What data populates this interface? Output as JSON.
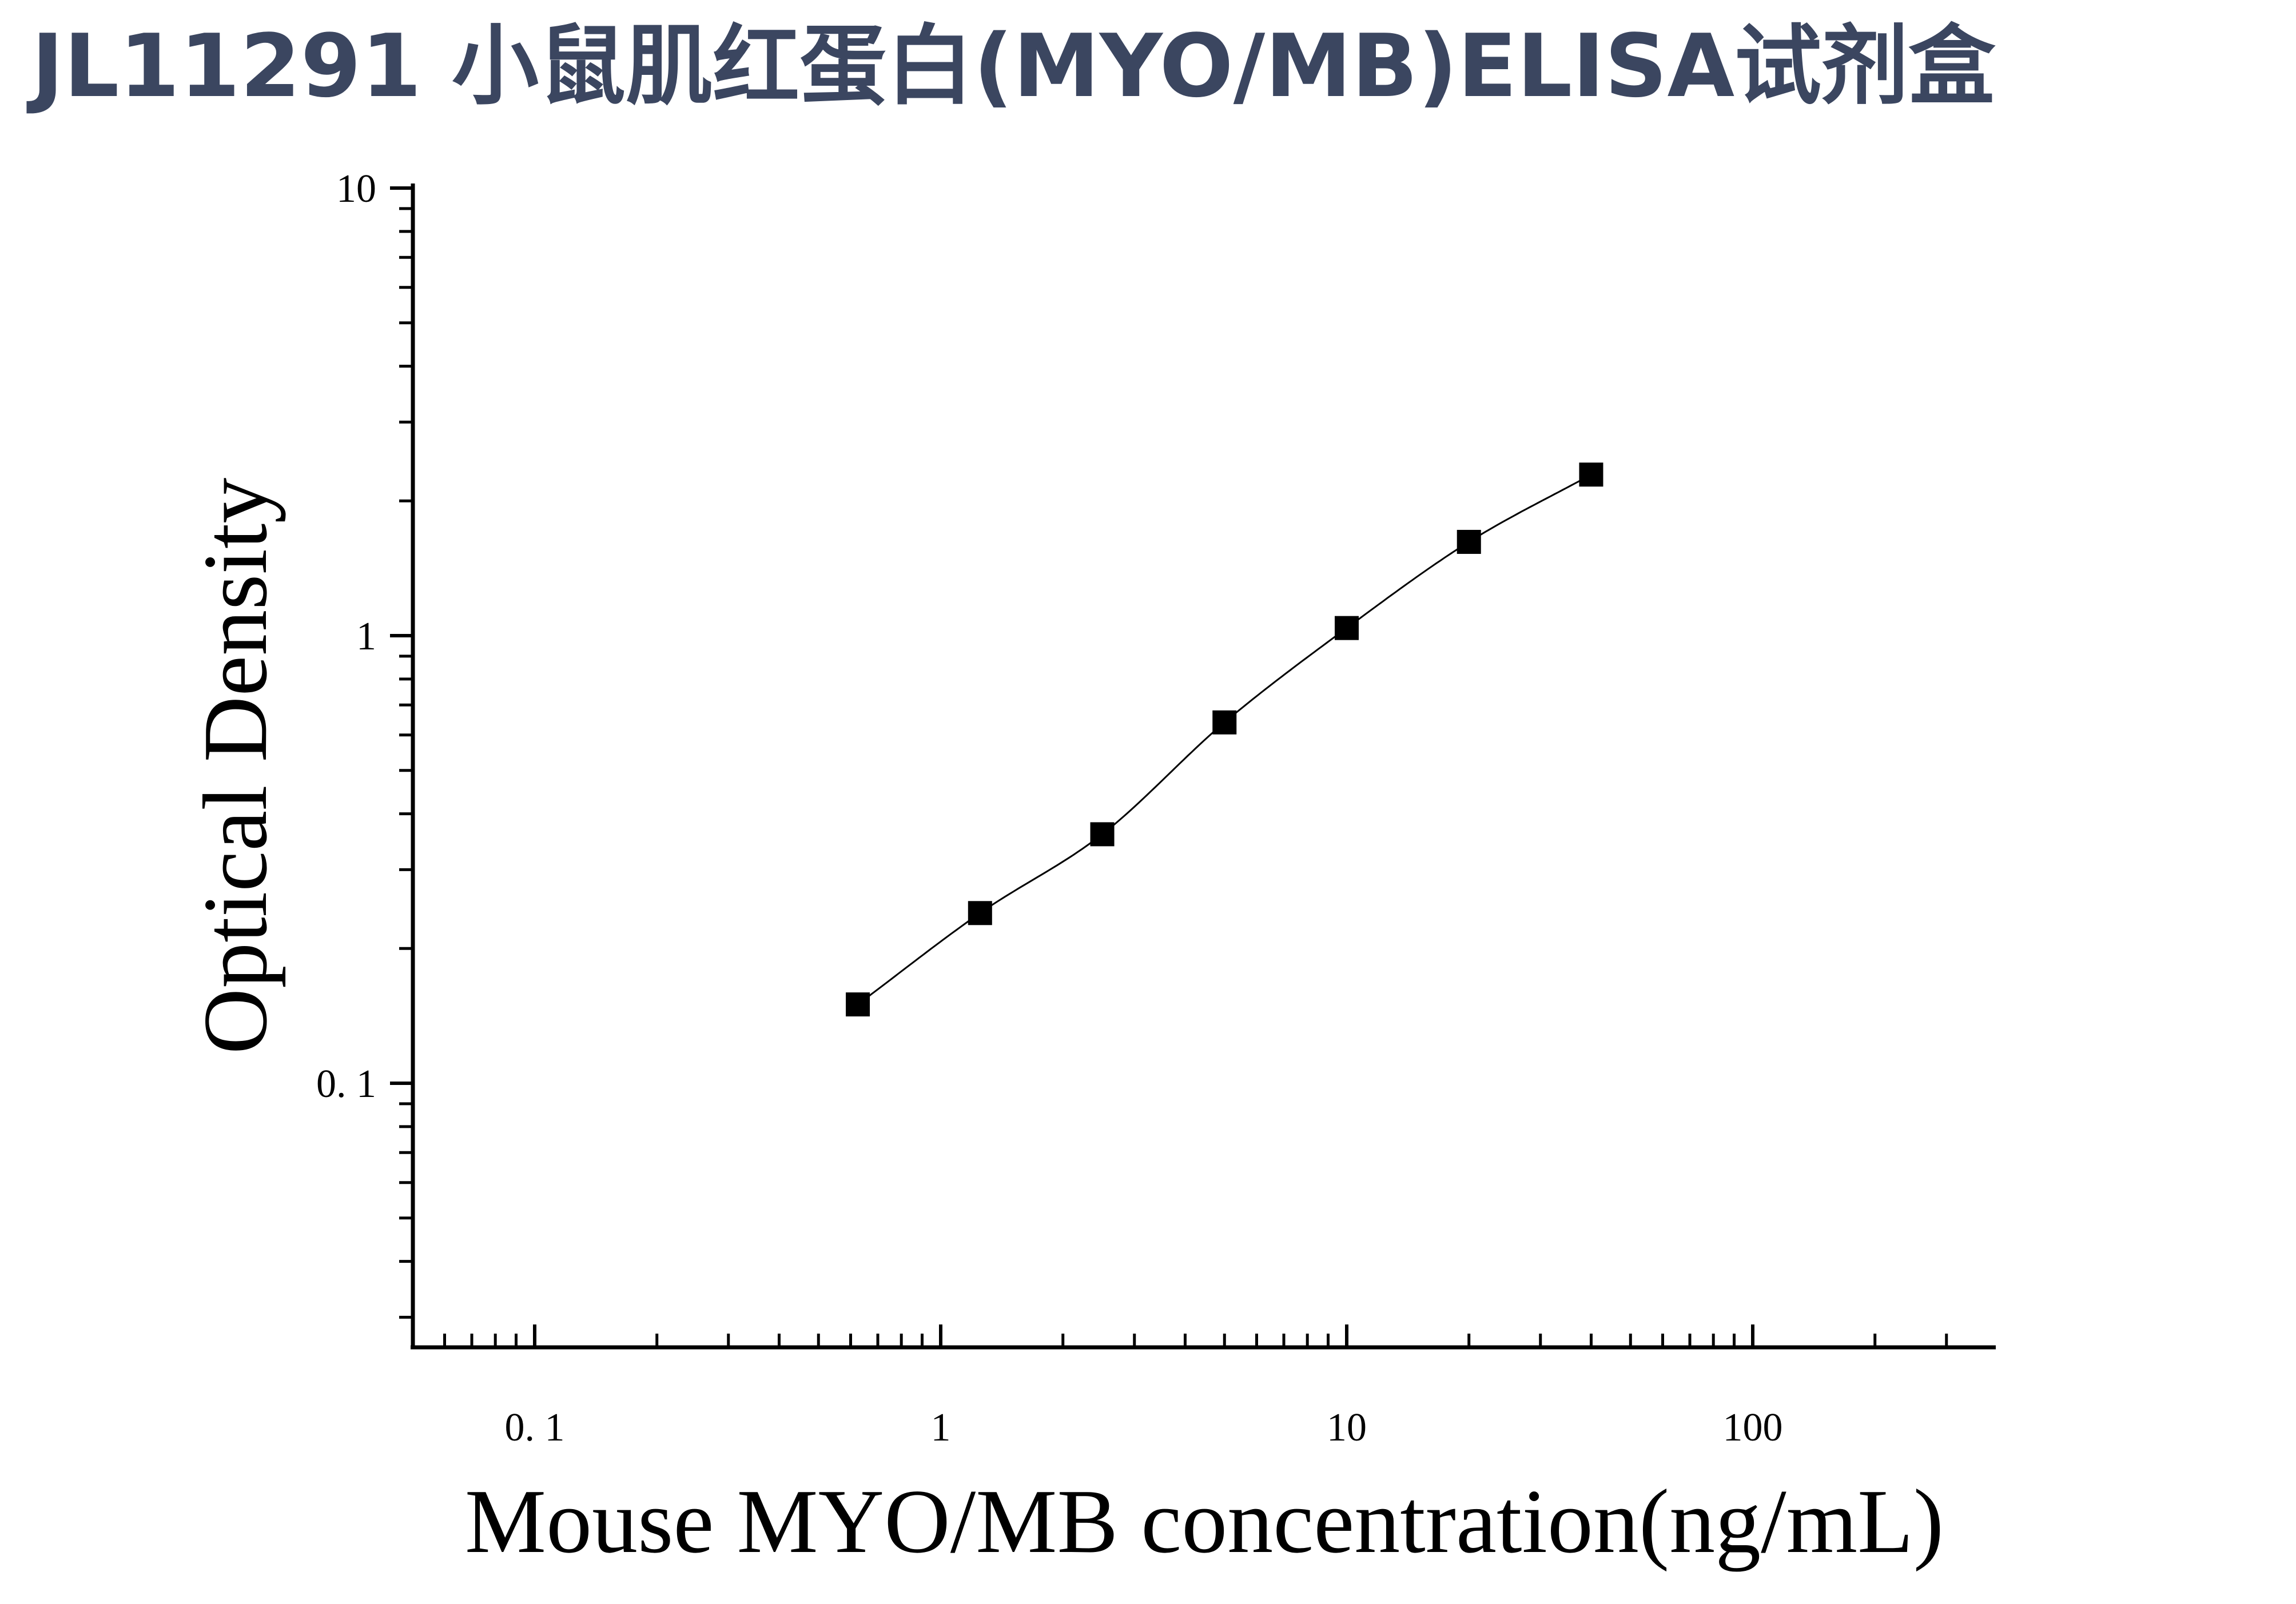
{
  "title": "JL11291 小鼠肌红蛋白(MYO/MB)ELISA试剂盒",
  "chart_data": {
    "type": "scatter",
    "xlabel": "Mouse MYO/MB concentration(ng/mL)",
    "ylabel": "Optical Density",
    "x_scale": "log",
    "y_scale": "log",
    "xlim": [
      0.05,
      350
    ],
    "ylim": [
      0.025,
      10
    ],
    "x_ticks": [
      {
        "value": 0.1,
        "label": "0. 1"
      },
      {
        "value": 1,
        "label": "1"
      },
      {
        "value": 10,
        "label": "10"
      },
      {
        "value": 100,
        "label": "100"
      }
    ],
    "y_ticks": [
      {
        "value": 0.1,
        "label": "0. 1"
      },
      {
        "value": 1,
        "label": "1"
      },
      {
        "value": 10,
        "label": "10"
      }
    ],
    "grid": false,
    "fit_curve": true,
    "marker_color": "#000000",
    "series": [
      {
        "x": [
          0.625,
          1.25,
          2.5,
          5,
          10,
          20,
          40
        ],
        "y": [
          0.15,
          0.24,
          0.36,
          0.64,
          1.04,
          1.62,
          2.29
        ]
      }
    ]
  }
}
